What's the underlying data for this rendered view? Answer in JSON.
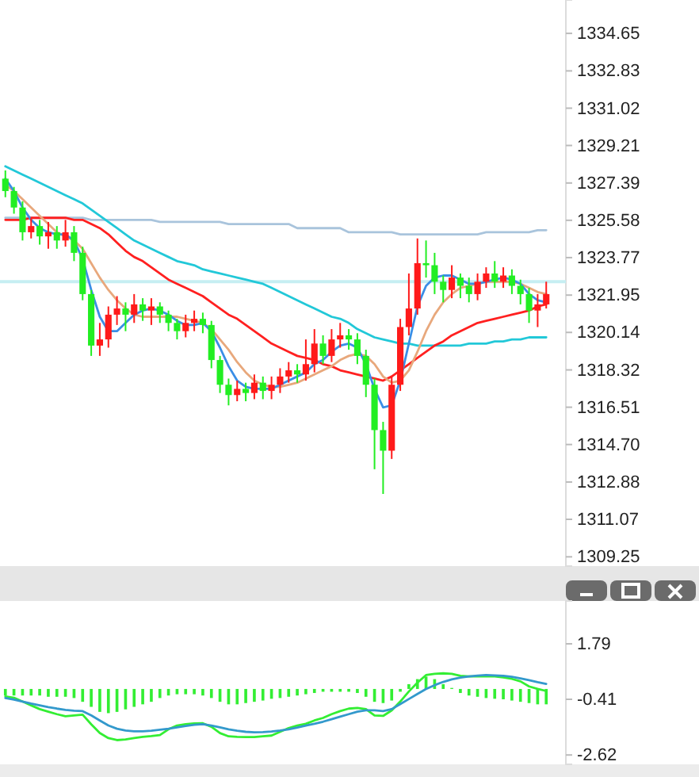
{
  "chart_data": [
    {
      "type": "candlestick",
      "tick_labels": "y",
      "categories": [
        null,
        null,
        null,
        null,
        null,
        null,
        null,
        null,
        null,
        null,
        null,
        null,
        null,
        null,
        null,
        null,
        null,
        null,
        null,
        null,
        null,
        null,
        null,
        null,
        null,
        null,
        null,
        null,
        null,
        null,
        null,
        null,
        null,
        null,
        null,
        null,
        null,
        null,
        null,
        null,
        null,
        null,
        null,
        null,
        null,
        null,
        null,
        null,
        null,
        null,
        null,
        null,
        null,
        null,
        null,
        null,
        null,
        null,
        null,
        null,
        null,
        null,
        null,
        null
      ],
      "ohlc": [
        [
          1327.6,
          1328.0,
          1326.7,
          1327.0
        ],
        [
          1327.0,
          1327.2,
          1325.9,
          1326.2
        ],
        [
          1326.2,
          1326.5,
          1324.6,
          1325.0
        ],
        [
          1325.0,
          1325.7,
          1324.7,
          1325.3
        ],
        [
          1325.3,
          1325.6,
          1324.4,
          1324.8
        ],
        [
          1324.8,
          1325.5,
          1324.2,
          1325.0
        ],
        [
          1325.0,
          1325.3,
          1324.2,
          1324.6
        ],
        [
          1324.6,
          1325.6,
          1324.3,
          1325.0
        ],
        [
          1325.0,
          1325.3,
          1323.6,
          1324.0
        ],
        [
          1324.0,
          1324.3,
          1321.7,
          1322.0
        ],
        [
          1322.0,
          1322.2,
          1319.0,
          1319.5
        ],
        [
          1319.5,
          1320.6,
          1319.0,
          1319.8
        ],
        [
          1319.8,
          1321.4,
          1319.4,
          1321.0
        ],
        [
          1321.0,
          1321.9,
          1320.5,
          1321.3
        ],
        [
          1321.3,
          1321.6,
          1320.2,
          1321.0
        ],
        [
          1321.0,
          1322.0,
          1320.6,
          1321.5
        ],
        [
          1321.5,
          1321.8,
          1320.7,
          1321.2
        ],
        [
          1321.2,
          1321.8,
          1320.5,
          1321.4
        ],
        [
          1321.4,
          1321.6,
          1320.6,
          1321.0
        ],
        [
          1321.0,
          1321.2,
          1320.2,
          1320.6
        ],
        [
          1320.6,
          1320.8,
          1319.8,
          1320.2
        ],
        [
          1320.2,
          1321.0,
          1319.9,
          1320.6
        ],
        [
          1320.6,
          1321.2,
          1320.2,
          1320.8
        ],
        [
          1320.8,
          1321.1,
          1320.1,
          1320.5
        ],
        [
          1320.5,
          1320.7,
          1318.4,
          1318.8
        ],
        [
          1318.8,
          1319.0,
          1317.2,
          1317.6
        ],
        [
          1317.6,
          1317.9,
          1316.6,
          1317.1
        ],
        [
          1317.1,
          1317.8,
          1316.8,
          1317.4
        ],
        [
          1317.4,
          1317.7,
          1316.8,
          1317.2
        ],
        [
          1317.2,
          1318.1,
          1316.9,
          1317.7
        ],
        [
          1317.7,
          1318.0,
          1316.9,
          1317.3
        ],
        [
          1317.3,
          1318.0,
          1316.9,
          1317.6
        ],
        [
          1317.6,
          1318.4,
          1317.2,
          1318.0
        ],
        [
          1318.0,
          1318.7,
          1317.7,
          1318.3
        ],
        [
          1318.3,
          1318.6,
          1317.7,
          1318.1
        ],
        [
          1318.1,
          1319.8,
          1317.8,
          1318.6
        ],
        [
          1318.6,
          1320.3,
          1318.2,
          1319.6
        ],
        [
          1319.6,
          1320.0,
          1318.6,
          1319.0
        ],
        [
          1319.0,
          1320.3,
          1318.7,
          1319.8
        ],
        [
          1319.8,
          1320.6,
          1319.4,
          1320.0
        ],
        [
          1320.0,
          1320.3,
          1319.3,
          1319.8
        ],
        [
          1319.8,
          1320.1,
          1318.6,
          1319.0
        ],
        [
          1319.0,
          1319.3,
          1317.0,
          1317.6
        ],
        [
          1317.6,
          1317.9,
          1313.5,
          1315.4
        ],
        [
          1315.4,
          1315.8,
          1312.3,
          1314.4
        ],
        [
          1314.4,
          1318.0,
          1314.0,
          1317.6
        ],
        [
          1317.6,
          1320.8,
          1317.3,
          1320.4
        ],
        [
          1320.4,
          1323.0,
          1320.0,
          1321.3
        ],
        [
          1321.3,
          1324.7,
          1321.0,
          1323.5
        ],
        [
          1323.5,
          1324.6,
          1322.8,
          1323.4
        ],
        [
          1323.4,
          1324.0,
          1322.0,
          1322.6
        ],
        [
          1322.6,
          1322.9,
          1321.6,
          1322.2
        ],
        [
          1322.2,
          1323.4,
          1321.8,
          1322.8
        ],
        [
          1322.8,
          1323.0,
          1321.8,
          1322.4
        ],
        [
          1322.4,
          1322.8,
          1321.6,
          1322.0
        ],
        [
          1322.0,
          1323.0,
          1321.7,
          1322.6
        ],
        [
          1322.6,
          1323.3,
          1322.3,
          1323.0
        ],
        [
          1323.0,
          1323.6,
          1322.3,
          1322.6
        ],
        [
          1322.6,
          1323.3,
          1322.3,
          1322.9
        ],
        [
          1322.9,
          1323.2,
          1322.0,
          1322.4
        ],
        [
          1322.4,
          1322.7,
          1321.5,
          1322.0
        ],
        [
          1322.0,
          1322.3,
          1320.6,
          1321.2
        ],
        [
          1321.2,
          1322.0,
          1320.4,
          1321.5
        ],
        [
          1321.5,
          1322.6,
          1321.3,
          1322.0
        ]
      ],
      "series": [
        {
          "type": "line",
          "color": "#a9c4dc",
          "values": [
            1325.7,
            1325.7,
            1325.7,
            1325.7,
            1325.7,
            1325.7,
            1325.7,
            1325.7,
            1325.7,
            1325.7,
            1325.6,
            1325.6,
            1325.6,
            1325.6,
            1325.6,
            1325.6,
            1325.6,
            1325.6,
            1325.5,
            1325.5,
            1325.5,
            1325.5,
            1325.5,
            1325.5,
            1325.5,
            1325.5,
            1325.4,
            1325.4,
            1325.4,
            1325.4,
            1325.4,
            1325.4,
            1325.4,
            1325.4,
            1325.2,
            1325.2,
            1325.2,
            1325.2,
            1325.2,
            1325.2,
            1325.0,
            1325.0,
            1325.0,
            1325.0,
            1325.0,
            1325.0,
            1324.9,
            1324.9,
            1324.9,
            1324.9,
            1324.9,
            1324.9,
            1324.9,
            1324.9,
            1324.9,
            1324.9,
            1325.0,
            1325.0,
            1325.0,
            1325.0,
            1325.0,
            1325.0,
            1325.1,
            1325.1
          ]
        },
        {
          "type": "line",
          "color": "#22c8d8",
          "values": [
            1328.2,
            1328.0,
            1327.8,
            1327.6,
            1327.4,
            1327.2,
            1327.0,
            1326.8,
            1326.6,
            1326.4,
            1326.1,
            1325.8,
            1325.5,
            1325.2,
            1324.9,
            1324.6,
            1324.4,
            1324.2,
            1324.0,
            1323.8,
            1323.6,
            1323.5,
            1323.4,
            1323.2,
            1323.1,
            1323.0,
            1322.9,
            1322.8,
            1322.7,
            1322.6,
            1322.5,
            1322.3,
            1322.1,
            1321.9,
            1321.7,
            1321.5,
            1321.3,
            1321.1,
            1320.9,
            1320.8,
            1320.6,
            1320.3,
            1320.1,
            1319.9,
            1319.8,
            1319.7,
            1319.6,
            1319.6,
            1319.5,
            1319.5,
            1319.5,
            1319.5,
            1319.5,
            1319.5,
            1319.6,
            1319.6,
            1319.6,
            1319.7,
            1319.7,
            1319.8,
            1319.8,
            1319.9,
            1319.9,
            1319.9
          ]
        },
        {
          "type": "line",
          "color": "#ff2020",
          "values": [
            1325.6,
            1325.6,
            1325.6,
            1325.7,
            1325.7,
            1325.7,
            1325.7,
            1325.7,
            1325.6,
            1325.6,
            1325.4,
            1325.2,
            1324.9,
            1324.5,
            1324.1,
            1323.8,
            1323.6,
            1323.3,
            1323.0,
            1322.7,
            1322.5,
            1322.3,
            1322.1,
            1321.9,
            1321.6,
            1321.3,
            1321.0,
            1320.8,
            1320.5,
            1320.2,
            1319.9,
            1319.6,
            1319.4,
            1319.2,
            1319.0,
            1318.9,
            1318.8,
            1318.6,
            1318.5,
            1318.3,
            1318.2,
            1318.1,
            1318.0,
            1317.9,
            1317.8,
            1318.0,
            1318.3,
            1318.6,
            1318.9,
            1319.2,
            1319.5,
            1319.7,
            1320.0,
            1320.2,
            1320.4,
            1320.6,
            1320.7,
            1320.8,
            1320.9,
            1321.0,
            1321.1,
            1321.2,
            1321.4,
            1321.5
          ]
        },
        {
          "type": "line",
          "color": "#e8a87c",
          "values": [
            1327.3,
            1327.0,
            1326.6,
            1326.2,
            1325.8,
            1325.4,
            1325.0,
            1324.8,
            1324.6,
            1324.2,
            1323.5,
            1322.8,
            1322.2,
            1321.7,
            1321.3,
            1321.0,
            1320.9,
            1320.9,
            1320.9,
            1320.9,
            1320.9,
            1320.8,
            1320.7,
            1320.6,
            1320.3,
            1319.8,
            1319.3,
            1318.7,
            1318.2,
            1317.8,
            1317.6,
            1317.5,
            1317.5,
            1317.6,
            1317.7,
            1317.9,
            1318.1,
            1318.3,
            1318.5,
            1318.8,
            1319.0,
            1319.1,
            1319.0,
            1318.6,
            1318.0,
            1317.7,
            1317.8,
            1318.3,
            1319.2,
            1320.2,
            1321.0,
            1321.6,
            1322.0,
            1322.3,
            1322.4,
            1322.5,
            1322.6,
            1322.6,
            1322.6,
            1322.6,
            1322.5,
            1322.3,
            1322.1,
            1322.0
          ]
        },
        {
          "type": "line",
          "color": "#3a8ee6",
          "values": [
            1327.6,
            1327.0,
            1326.2,
            1325.6,
            1325.2,
            1325.0,
            1324.9,
            1324.9,
            1324.6,
            1323.7,
            1322.2,
            1320.9,
            1320.2,
            1320.2,
            1320.6,
            1321.0,
            1321.2,
            1321.3,
            1321.2,
            1321.0,
            1320.7,
            1320.5,
            1320.5,
            1320.6,
            1320.2,
            1319.4,
            1318.5,
            1317.8,
            1317.5,
            1317.4,
            1317.4,
            1317.4,
            1317.6,
            1317.8,
            1318.0,
            1318.2,
            1318.6,
            1318.8,
            1319.2,
            1319.5,
            1319.6,
            1319.4,
            1318.6,
            1317.4,
            1316.5,
            1316.6,
            1317.8,
            1319.6,
            1321.4,
            1322.4,
            1322.8,
            1322.9,
            1322.9,
            1322.7,
            1322.5,
            1322.5,
            1322.6,
            1322.7,
            1322.8,
            1322.7,
            1322.5,
            1322.0,
            1321.7,
            1321.6
          ]
        }
      ],
      "ylim": [
        1308.8,
        1336.27
      ],
      "yticks": [
        1334.65,
        1332.83,
        1331.02,
        1329.21,
        1327.39,
        1325.58,
        1323.77,
        1321.95,
        1320.14,
        1318.32,
        1316.51,
        {
          "value": 1314.7,
          "label": "1314.70"
        },
        1312.88,
        1311.07,
        1309.25
      ],
      "ref_lines": [
        {
          "axis": "y",
          "value": 1322.6,
          "color": "#c6eef2"
        }
      ]
    },
    {
      "type": "bar",
      "tick_labels": "y",
      "categories": [
        null,
        null,
        null,
        null,
        null,
        null,
        null,
        null,
        null,
        null,
        null,
        null,
        null,
        null,
        null,
        null,
        null,
        null,
        null,
        null,
        null,
        null,
        null,
        null,
        null,
        null,
        null,
        null,
        null,
        null,
        null,
        null,
        null,
        null,
        null,
        null,
        null,
        null,
        null,
        null,
        null,
        null,
        null,
        null,
        null,
        null,
        null,
        null,
        null,
        null,
        null,
        null,
        null,
        null,
        null,
        null,
        null,
        null,
        null,
        null,
        null,
        null,
        null,
        null
      ],
      "series": [
        {
          "color": "#33ee33",
          "values": [
            -0.26,
            -0.26,
            -0.26,
            -0.26,
            -0.26,
            -0.31,
            -0.31,
            -0.31,
            -0.36,
            -0.51,
            -0.71,
            -0.91,
            -0.96,
            -0.91,
            -0.81,
            -0.71,
            -0.61,
            -0.51,
            -0.36,
            -0.26,
            -0.21,
            -0.21,
            -0.21,
            -0.26,
            -0.36,
            -0.51,
            -0.61,
            -0.61,
            -0.56,
            -0.51,
            -0.46,
            -0.39,
            -0.36,
            -0.31,
            -0.26,
            -0.21,
            -0.16,
            -0.11,
            -0.11,
            -0.11,
            -0.11,
            -0.16,
            -0.31,
            -0.51,
            -0.56,
            -0.46,
            -0.11,
            0.19,
            0.39,
            0.49,
            0.39,
            0.19,
            0.04,
            -0.16,
            -0.26,
            -0.31,
            -0.36,
            -0.39,
            -0.41,
            -0.46,
            -0.51,
            -0.56,
            -0.61,
            -0.61
          ]
        },
        {
          "type": "line",
          "color": "#33ee33",
          "values": [
            -0.3,
            -0.35,
            -0.5,
            -0.65,
            -0.8,
            -0.9,
            -1.0,
            -1.08,
            -1.05,
            -1.02,
            -1.4,
            -1.75,
            -1.95,
            -2.03,
            -2.0,
            -1.95,
            -1.9,
            -1.87,
            -1.83,
            -1.6,
            -1.45,
            -1.4,
            -1.37,
            -1.36,
            -1.5,
            -1.75,
            -1.88,
            -1.9,
            -1.91,
            -1.91,
            -1.88,
            -1.85,
            -1.7,
            -1.55,
            -1.45,
            -1.38,
            -1.25,
            -1.15,
            -1.0,
            -0.88,
            -0.78,
            -0.75,
            -0.8,
            -1.05,
            -1.07,
            -0.85,
            -0.5,
            -0.1,
            0.25,
            0.55,
            0.6,
            0.62,
            0.6,
            0.52,
            0.5,
            0.5,
            0.5,
            0.5,
            0.46,
            0.4,
            0.3,
            0.1,
            0.0,
            -0.08
          ]
        },
        {
          "type": "line",
          "color": "#3399cc",
          "values": [
            -0.36,
            -0.42,
            -0.5,
            -0.58,
            -0.65,
            -0.72,
            -0.78,
            -0.83,
            -0.86,
            -0.88,
            -1.05,
            -1.25,
            -1.45,
            -1.58,
            -1.65,
            -1.68,
            -1.68,
            -1.66,
            -1.62,
            -1.58,
            -1.52,
            -1.47,
            -1.42,
            -1.4,
            -1.45,
            -1.52,
            -1.6,
            -1.66,
            -1.7,
            -1.72,
            -1.71,
            -1.69,
            -1.65,
            -1.6,
            -1.53,
            -1.45,
            -1.38,
            -1.3,
            -1.2,
            -1.1,
            -1.0,
            -0.9,
            -0.85,
            -0.85,
            -0.88,
            -0.8,
            -0.6,
            -0.4,
            -0.2,
            0.0,
            0.15,
            0.28,
            0.38,
            0.45,
            0.5,
            0.53,
            0.55,
            0.54,
            0.52,
            0.48,
            0.42,
            0.35,
            0.27,
            0.2
          ]
        }
      ],
      "ylim": [
        -2.99,
        3.49
      ],
      "yticks": [
        1.79,
        -0.41,
        -2.62
      ]
    }
  ]
}
